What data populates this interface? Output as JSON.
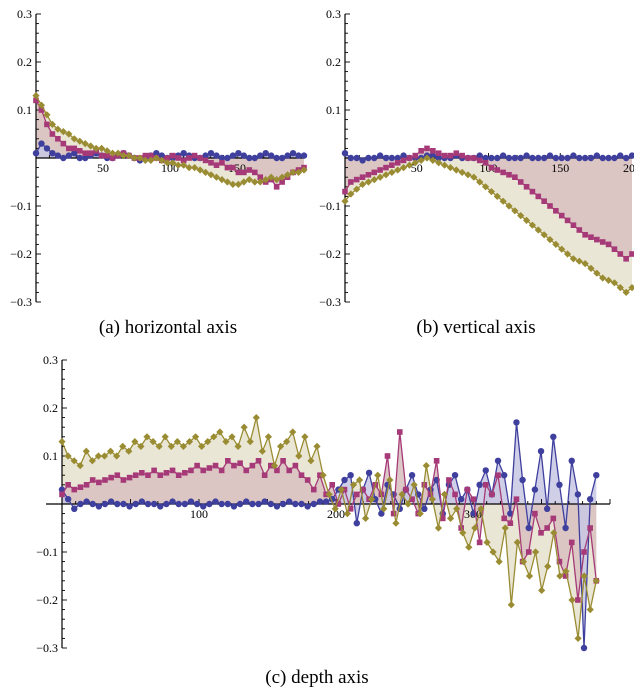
{
  "colors": {
    "blue": "#3f3f9e",
    "magenta": "#a63a78",
    "olive": "#9a8c33",
    "fill_olive": "#e8e3d0",
    "fill_mauve": "#d9c2c2",
    "fill_blue": "#c7c7e4"
  },
  "chart_data": [
    {
      "id": "a",
      "type": "line",
      "caption": "(a)  horizontal axis",
      "xlim": [
        0,
        200
      ],
      "ylim": [
        -0.3,
        0.3
      ],
      "x_ticks": [
        "50",
        "100",
        "150"
      ],
      "y_ticks": [
        "0.3",
        "0.2",
        "0.1",
        "−0.1",
        "−0.2",
        "−0.3"
      ],
      "x_range": [
        0,
        200
      ],
      "series": [
        {
          "marker": "circle",
          "color": "blue",
          "values": [
            0.01,
            0.03,
            0.02,
            0.01,
            0.005,
            0,
            0.005,
            0.01,
            0,
            0,
            0.005,
            0.01,
            0.005,
            0,
            0,
            0.005,
            0.01,
            0.005,
            0,
            -0.005,
            0,
            0.005,
            0.01,
            0.005,
            0,
            0,
            0.005,
            0.01,
            0.005,
            0,
            0,
            0.005,
            0.01,
            0.005,
            0,
            0,
            0.005,
            0.01,
            0.005,
            0,
            0,
            0.005,
            0.01,
            0.005,
            0,
            0,
            0.005,
            0.01,
            0.005,
            0.005
          ]
        },
        {
          "marker": "square",
          "color": "magenta",
          "values": [
            0.12,
            0.1,
            0.07,
            0.05,
            0.04,
            0.03,
            0.02,
            0.02,
            0.015,
            0.01,
            0.01,
            0.015,
            0.005,
            0.005,
            0,
            0.005,
            0.01,
            0.005,
            0,
            0,
            0.005,
            0.005,
            0,
            -0.005,
            0,
            0.005,
            0,
            -0.005,
            0,
            0.005,
            0,
            -0.005,
            -0.01,
            -0.015,
            -0.01,
            -0.02,
            -0.02,
            -0.03,
            -0.03,
            -0.025,
            -0.03,
            -0.04,
            -0.05,
            -0.045,
            -0.06,
            -0.05,
            -0.04,
            -0.03,
            -0.025,
            -0.02
          ]
        },
        {
          "marker": "diamond",
          "color": "olive",
          "values": [
            0.13,
            0.11,
            0.09,
            0.07,
            0.06,
            0.055,
            0.05,
            0.04,
            0.035,
            0.03,
            0.025,
            0.02,
            0.02,
            0.015,
            0.01,
            0.01,
            0.005,
            0.005,
            0,
            0,
            -0.005,
            -0.005,
            0,
            -0.005,
            -0.01,
            -0.01,
            -0.015,
            -0.015,
            -0.02,
            -0.02,
            -0.025,
            -0.03,
            -0.035,
            -0.04,
            -0.045,
            -0.05,
            -0.055,
            -0.055,
            -0.05,
            -0.045,
            -0.05,
            -0.05,
            -0.045,
            -0.04,
            -0.045,
            -0.04,
            -0.035,
            -0.03,
            -0.03,
            -0.025
          ]
        }
      ]
    },
    {
      "id": "b",
      "type": "line",
      "caption": "(b)  vertical axis",
      "xlim": [
        0,
        200
      ],
      "ylim": [
        -0.3,
        0.3
      ],
      "x_ticks": [
        "50",
        "100",
        "150",
        "200"
      ],
      "y_ticks": [
        "0.3",
        "0.2",
        "0.1",
        "−0.1",
        "−0.2",
        "−0.3"
      ],
      "x_range": [
        0,
        200
      ],
      "series": [
        {
          "marker": "circle",
          "color": "blue",
          "values": [
            0.01,
            0,
            0,
            -0.005,
            0,
            0,
            0.005,
            0,
            0,
            0,
            0.005,
            0,
            0,
            0,
            0.005,
            0.005,
            0,
            0,
            0,
            0.005,
            0,
            0,
            0,
            0.005,
            0,
            0,
            0,
            0.005,
            0,
            0,
            0,
            0.005,
            0,
            0,
            0,
            0.005,
            0,
            0,
            0,
            0.005,
            0,
            0,
            0,
            0.005,
            0,
            0,
            0,
            0.005,
            0,
            0.005
          ]
        },
        {
          "marker": "square",
          "color": "magenta",
          "values": [
            -0.07,
            -0.05,
            -0.045,
            -0.04,
            -0.035,
            -0.03,
            -0.025,
            -0.02,
            -0.015,
            -0.01,
            -0.005,
            0,
            0.005,
            0.015,
            0.02,
            0.015,
            0.01,
            0.005,
            0.005,
            0.01,
            0.005,
            0,
            0,
            -0.005,
            -0.01,
            -0.02,
            -0.025,
            -0.03,
            -0.035,
            -0.04,
            -0.05,
            -0.06,
            -0.07,
            -0.08,
            -0.09,
            -0.1,
            -0.11,
            -0.12,
            -0.13,
            -0.14,
            -0.15,
            -0.16,
            -0.165,
            -0.17,
            -0.175,
            -0.18,
            -0.19,
            -0.2,
            -0.21,
            -0.2
          ]
        },
        {
          "marker": "diamond",
          "color": "olive",
          "values": [
            -0.09,
            -0.075,
            -0.065,
            -0.055,
            -0.05,
            -0.045,
            -0.04,
            -0.035,
            -0.03,
            -0.025,
            -0.02,
            -0.015,
            -0.01,
            -0.005,
            0,
            -0.005,
            -0.01,
            -0.015,
            -0.02,
            -0.025,
            -0.03,
            -0.035,
            -0.04,
            -0.05,
            -0.06,
            -0.07,
            -0.08,
            -0.09,
            -0.1,
            -0.11,
            -0.12,
            -0.13,
            -0.14,
            -0.15,
            -0.16,
            -0.17,
            -0.18,
            -0.19,
            -0.2,
            -0.21,
            -0.215,
            -0.22,
            -0.23,
            -0.24,
            -0.25,
            -0.255,
            -0.26,
            -0.27,
            -0.28,
            -0.27
          ]
        }
      ]
    },
    {
      "id": "c",
      "type": "line",
      "caption": "(c)  depth axis",
      "xlim": [
        0,
        400
      ],
      "ylim": [
        -0.3,
        0.3
      ],
      "x_ticks": [
        "100",
        "200",
        "300"
      ],
      "y_ticks": [
        "0.3",
        "0.2",
        "0.1",
        "−0.1",
        "−0.2",
        "−0.3"
      ],
      "x_range": [
        0,
        390
      ],
      "series": [
        {
          "marker": "circle",
          "color": "blue",
          "values": [
            0.03,
            0.01,
            -0.01,
            0,
            0.005,
            0,
            -0.005,
            0,
            0.005,
            0,
            0,
            -0.005,
            0,
            0.005,
            0,
            0,
            -0.005,
            0,
            0.005,
            0,
            0,
            0.005,
            0,
            -0.005,
            0,
            0.005,
            0,
            0,
            -0.005,
            0,
            0.005,
            0,
            0,
            0.005,
            0,
            -0.005,
            0,
            0.005,
            0,
            0,
            -0.005,
            0,
            0.005,
            0.005,
            0.01,
            0.03,
            0.05,
            0.06,
            -0.04,
            0.03,
            0.065,
            0.01,
            -0.02,
            0.04,
            0.02,
            -0.01,
            0.03,
            0.06,
            0.02,
            -0.01,
            0.03,
            0.05,
            -0.02,
            0.04,
            0.06,
            0.01,
            0.03,
            -0.02,
            0.04,
            0.07,
            0.02,
            0.09,
            0.06,
            -0.02,
            0.17,
            0.05,
            -0.05,
            0.03,
            0.11,
            -0.01,
            0.14,
            0.04,
            -0.05,
            0.09,
            0.02,
            -0.3,
            0.01,
            0.06
          ]
        },
        {
          "marker": "square",
          "color": "magenta",
          "values": [
            0.02,
            0.04,
            0.03,
            0.035,
            0.04,
            0.05,
            0.045,
            0.05,
            0.055,
            0.06,
            0.05,
            0.055,
            0.06,
            0.065,
            0.06,
            0.07,
            0.06,
            0.065,
            0.07,
            0.06,
            0.065,
            0.07,
            0.08,
            0.07,
            0.075,
            0.08,
            0.07,
            0.09,
            0.08,
            0.085,
            0.07,
            0.08,
            0.09,
            0.06,
            0.08,
            0.07,
            0.09,
            0.07,
            0.08,
            0.06,
            0.05,
            0.03,
            0.06,
            0.02,
            0.04,
            0,
            0.03,
            -0.01,
            0.02,
            0.03,
            0.01,
            0.04,
            0.02,
            0.1,
            -0.02,
            0.15,
            0.03,
            0.01,
            -0.02,
            0.04,
            0.02,
            0.09,
            -0.03,
            0.05,
            0.02,
            -0.05,
            0.03,
            0.01,
            -0.08,
            0.04,
            0.02,
            0.06,
            -0.03,
            -0.04,
            0.01,
            -0.12,
            -0.1,
            -0.02,
            -0.06,
            -0.05,
            -0.03,
            -0.12,
            -0.15,
            -0.08,
            -0.2,
            -0.1,
            -0.05,
            -0.16
          ]
        },
        {
          "marker": "diamond",
          "color": "olive",
          "values": [
            0.13,
            0.1,
            0.09,
            0.08,
            0.11,
            0.09,
            0.1,
            0.1,
            0.11,
            0.1,
            0.12,
            0.11,
            0.13,
            0.12,
            0.14,
            0.13,
            0.12,
            0.14,
            0.12,
            0.13,
            0.12,
            0.13,
            0.14,
            0.12,
            0.13,
            0.14,
            0.15,
            0.13,
            0.14,
            0.12,
            0.16,
            0.13,
            0.18,
            0.11,
            0.14,
            0.08,
            0.12,
            0.13,
            0.15,
            0.1,
            0.14,
            0.09,
            0.12,
            0.06,
            0.02,
            -0.01,
            0.03,
            -0.02,
            0.04,
            0.05,
            -0.03,
            0.01,
            0.06,
            -0.01,
            0.05,
            -0.04,
            0.02,
            0,
            0.04,
            -0.02,
            0.08,
            0.01,
            -0.05,
            0.02,
            -0.03,
            -0.01,
            -0.06,
            -0.09,
            -0.05,
            -0.01,
            -0.08,
            -0.1,
            -0.12,
            -0.05,
            -0.21,
            -0.08,
            -0.12,
            -0.15,
            -0.1,
            -0.18,
            -0.13,
            -0.06,
            -0.15,
            -0.14,
            -0.2,
            -0.28,
            -0.15,
            -0.22,
            -0.16
          ]
        }
      ]
    }
  ]
}
